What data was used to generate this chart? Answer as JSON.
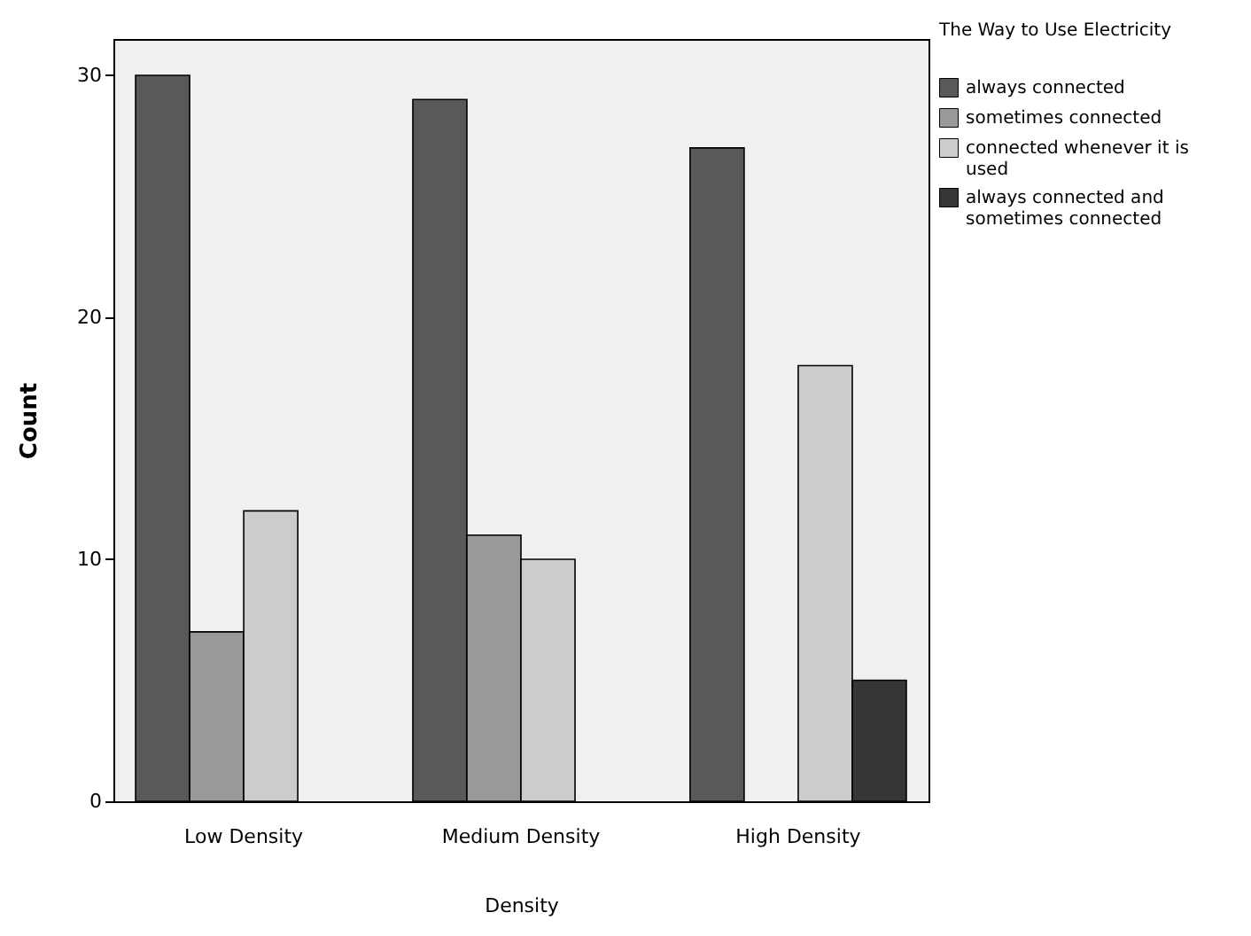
{
  "chart_data": {
    "type": "bar",
    "xlabel": "Density",
    "ylabel": "Count",
    "legend_title": "The Way to Use Electricity",
    "categories": [
      "Low Density",
      "Medium Density",
      "High Density"
    ],
    "series": [
      {
        "name": "always connected",
        "color": "#595959",
        "values": [
          30,
          29,
          27
        ]
      },
      {
        "name": "sometimes connected",
        "color": "#999999",
        "values": [
          7,
          11,
          null
        ]
      },
      {
        "name": "connected whenever it is used",
        "color": "#cccccc",
        "values": [
          12,
          10,
          18
        ]
      },
      {
        "name": "always connected and sometimes connected",
        "color": "#363636",
        "values": [
          null,
          null,
          5
        ]
      }
    ],
    "ylim": [
      0,
      31.5
    ],
    "yticks": [
      0,
      10,
      20,
      30
    ],
    "grid": false,
    "legend": "top right"
  }
}
